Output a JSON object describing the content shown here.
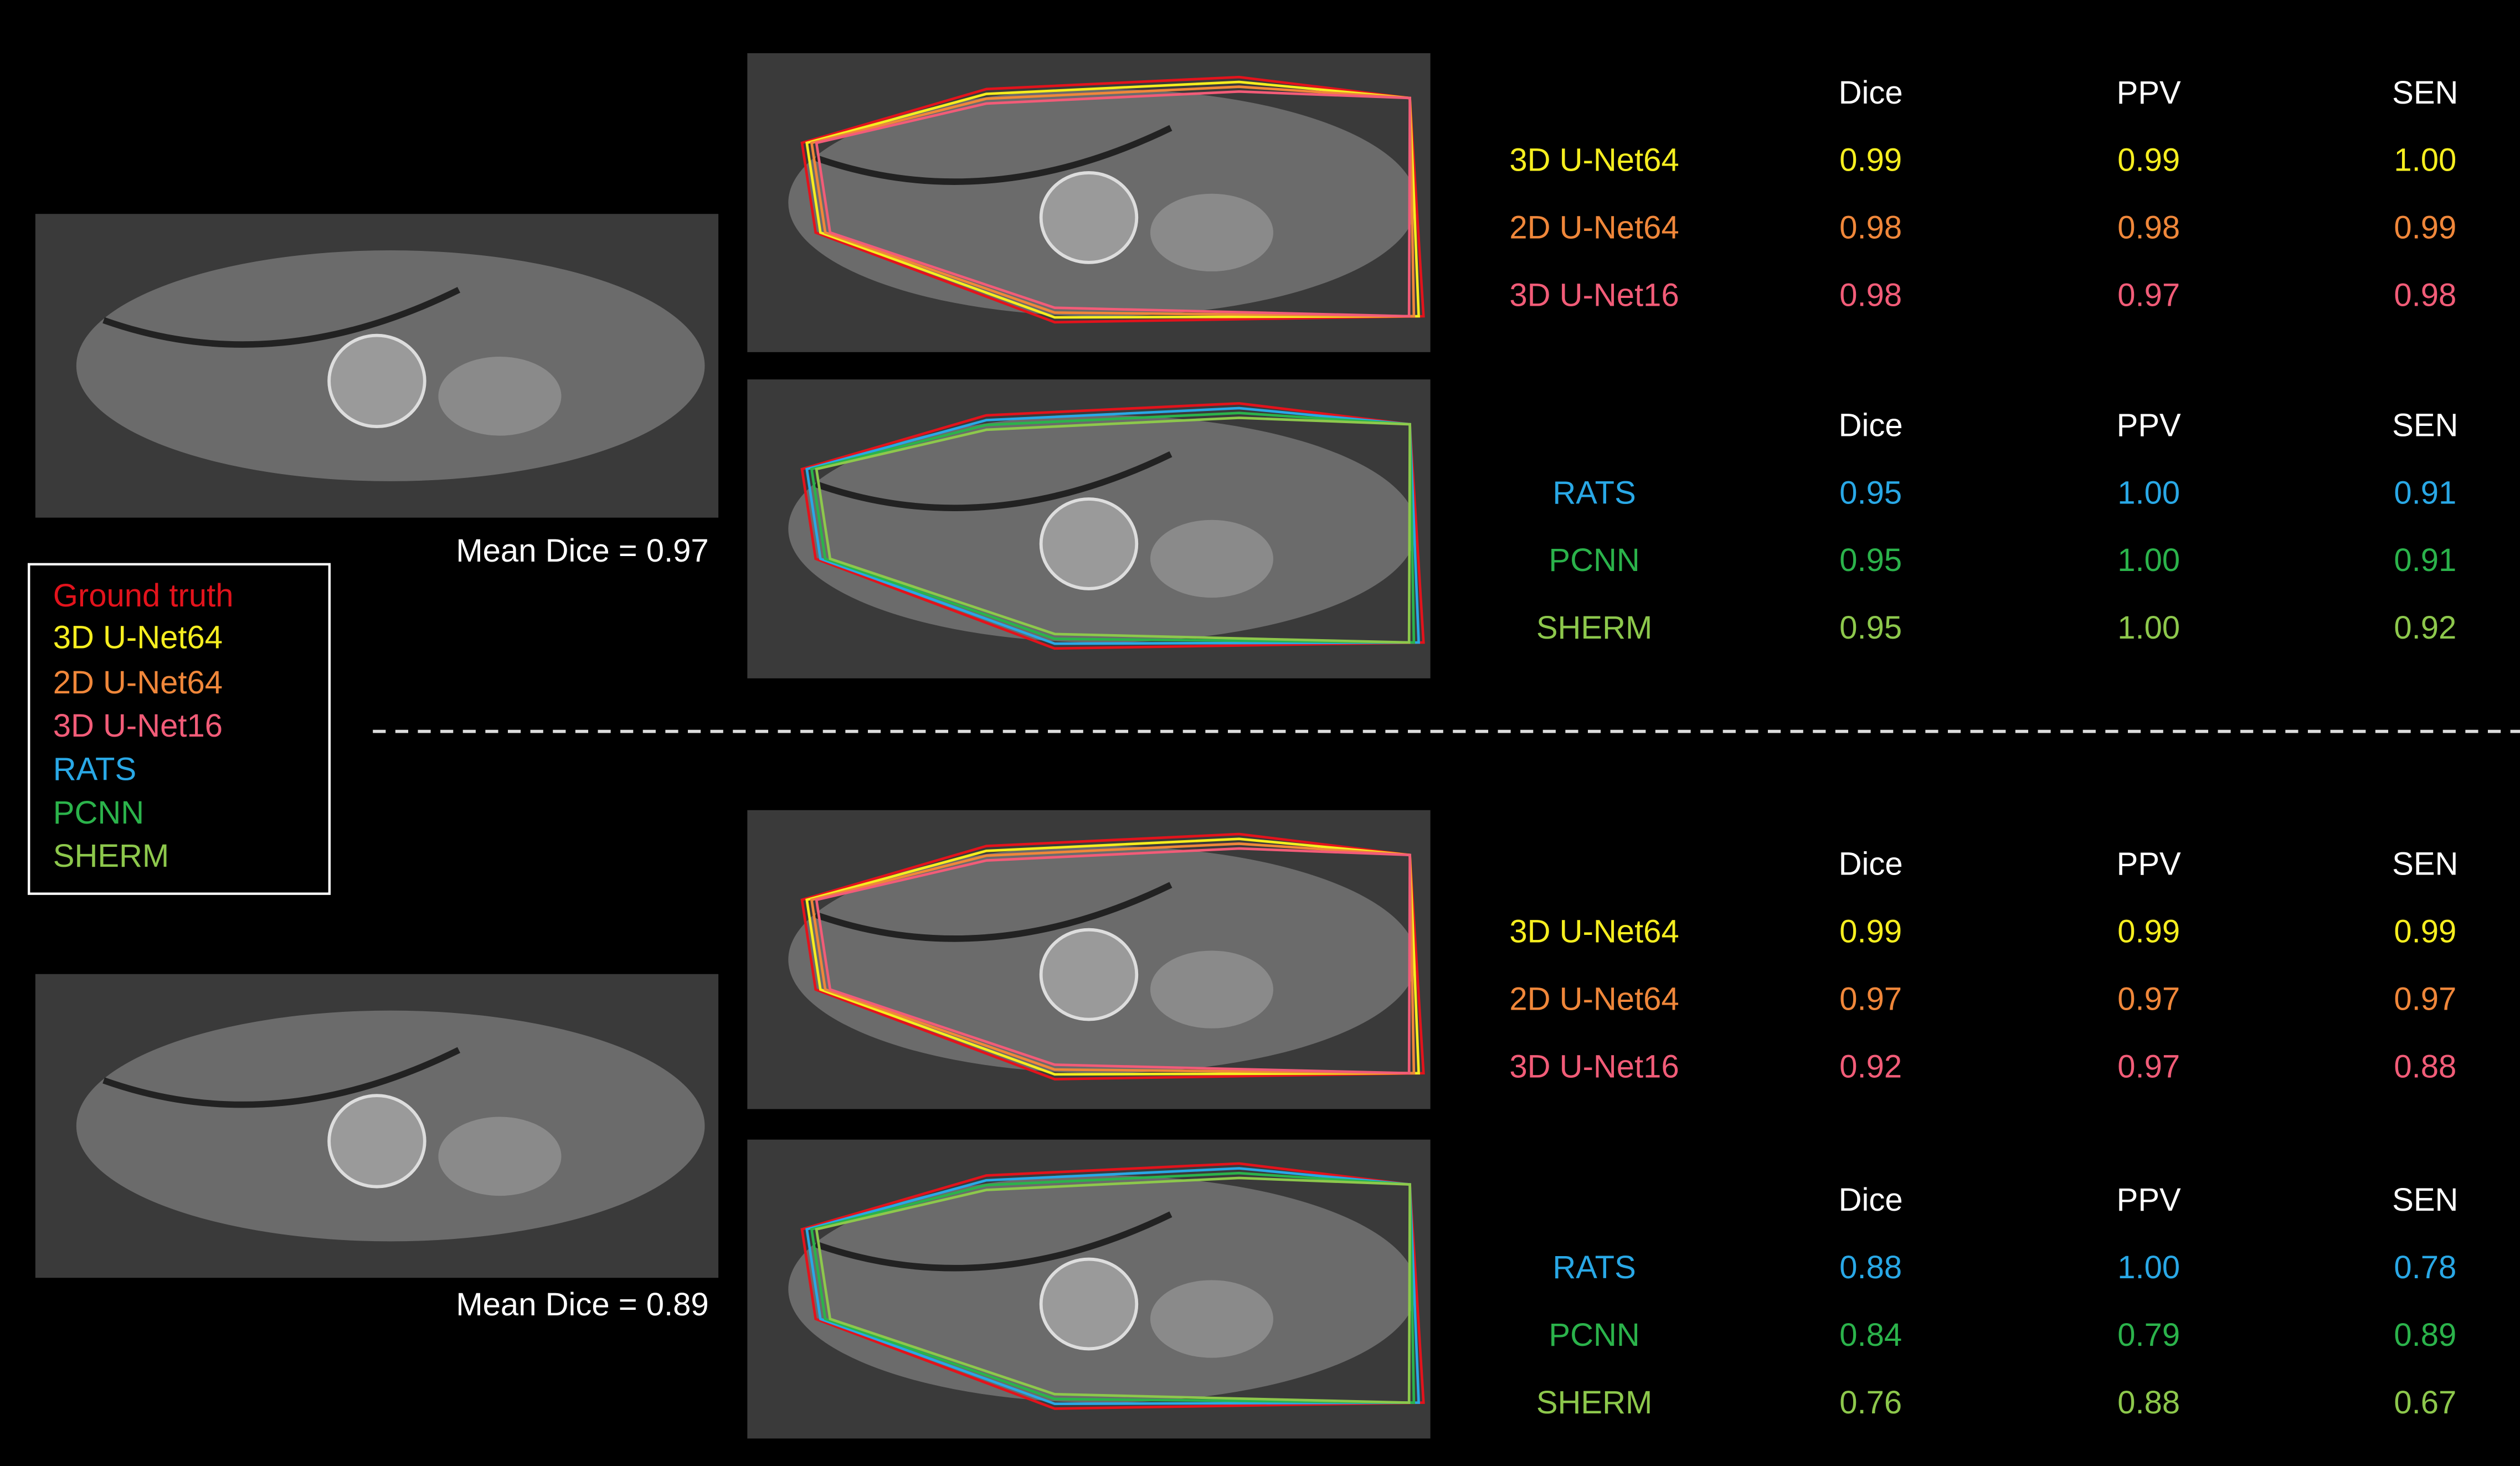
{
  "legend": [
    {
      "label": "Ground truth",
      "color": "#e3131c"
    },
    {
      "label": "3D U-Net64",
      "color": "#f6ee1f"
    },
    {
      "label": "2D U-Net64",
      "color": "#f0873a"
    },
    {
      "label": "3D U-Net16",
      "color": "#f25c78"
    },
    {
      "label": "RATS",
      "color": "#29a8e6"
    },
    {
      "label": "PCNN",
      "color": "#2bb34b"
    },
    {
      "label": "SHERM",
      "color": "#8dc84c"
    }
  ],
  "panels": [
    {
      "mean_dice": "Mean Dice = 0.97",
      "tables": [
        {
          "header": [
            "Dice",
            "PPV",
            "SEN"
          ],
          "rows": [
            [
              "3D U-Net64",
              "0.99",
              "0.99",
              "1.00"
            ],
            [
              "2D U-Net64",
              "0.98",
              "0.98",
              "0.99"
            ],
            [
              "3D U-Net16",
              "0.98",
              "0.97",
              "0.98"
            ]
          ]
        },
        {
          "header": [
            "Dice",
            "PPV",
            "SEN"
          ],
          "rows": [
            [
              "RATS",
              "0.95",
              "1.00",
              "0.91"
            ],
            [
              "PCNN",
              "0.95",
              "1.00",
              "0.91"
            ],
            [
              "SHERM",
              "0.95",
              "1.00",
              "0.92"
            ]
          ]
        }
      ]
    },
    {
      "mean_dice": "Mean Dice = 0.89",
      "tables": [
        {
          "header": [
            "Dice",
            "PPV",
            "SEN"
          ],
          "rows": [
            [
              "3D U-Net64",
              "0.99",
              "0.99",
              "0.99"
            ],
            [
              "2D U-Net64",
              "0.97",
              "0.97",
              "0.97"
            ],
            [
              "3D U-Net16",
              "0.92",
              "0.97",
              "0.88"
            ]
          ]
        },
        {
          "header": [
            "Dice",
            "PPV",
            "SEN"
          ],
          "rows": [
            [
              "RATS",
              "0.88",
              "1.00",
              "0.78"
            ],
            [
              "PCNN",
              "0.84",
              "0.79",
              "0.89"
            ],
            [
              "SHERM",
              "0.76",
              "0.88",
              "0.67"
            ]
          ]
        }
      ]
    }
  ]
}
